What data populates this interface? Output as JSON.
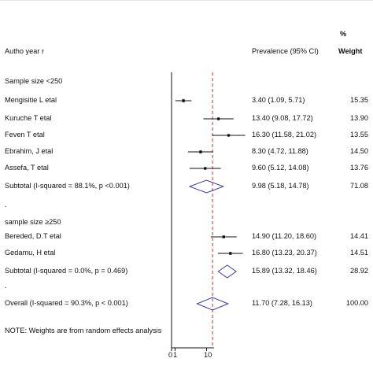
{
  "chart_data": {
    "type": "forest",
    "headers": {
      "study": "Autho year r",
      "estimate": "Prevalence (95% CI)",
      "weight_pct": "%",
      "weight": "Weight"
    },
    "axis": {
      "ticks": [
        "0",
        "1",
        "10"
      ],
      "reference_line": 11.7,
      "null_line": 0
    },
    "rows": [
      {
        "kind": "group",
        "label": "Sample size <250"
      },
      {
        "kind": "study",
        "label": "Mengisitie L etal",
        "est": 3.4,
        "lo": 1.09,
        "hi": 5.71,
        "ci": "3.40 (1.09, 5.71)",
        "weight": "15.35"
      },
      {
        "kind": "study",
        "label": "Kuruche T etal",
        "est": 13.4,
        "lo": 9.08,
        "hi": 17.72,
        "ci": "13.40 (9.08, 17.72)",
        "weight": "13.90"
      },
      {
        "kind": "study",
        "label": "Feven T  etal",
        "est": 16.3,
        "lo": 11.58,
        "hi": 21.02,
        "ci": "16.30 (11.58, 21.02)",
        "weight": "13.55"
      },
      {
        "kind": "study",
        "label": "Ebrahim, J etal",
        "est": 8.3,
        "lo": 4.72,
        "hi": 11.88,
        "ci": "8.30 (4.72, 11.88)",
        "weight": "14.50"
      },
      {
        "kind": "study",
        "label": "Assefa, T etal",
        "est": 9.6,
        "lo": 5.12,
        "hi": 14.08,
        "ci": "9.60 (5.12, 14.08)",
        "weight": "13.76"
      },
      {
        "kind": "subtotal",
        "label": "Subtotal  (I-squared = 88.1%, p <0.001)",
        "est": 9.98,
        "lo": 5.18,
        "hi": 14.78,
        "ci": "9.98 (5.18, 14.78)",
        "weight": "71.08"
      },
      {
        "kind": "blank",
        "label": "."
      },
      {
        "kind": "group",
        "label": "sample size ≥250"
      },
      {
        "kind": "study",
        "label": "Bereded, D.T etal",
        "est": 14.9,
        "lo": 11.2,
        "hi": 18.6,
        "ci": "14.90 (11.20, 18.60)",
        "weight": "14.41"
      },
      {
        "kind": "study",
        "label": "Gedamu, H etal",
        "est": 16.8,
        "lo": 13.23,
        "hi": 20.37,
        "ci": "16.80 (13.23, 20.37)",
        "weight": "14.51"
      },
      {
        "kind": "subtotal",
        "label": "Subtotal  (I-squared = 0.0%, p = 0.469)",
        "est": 15.89,
        "lo": 13.32,
        "hi": 18.46,
        "ci": "15.89 (13.32, 18.46)",
        "weight": "28.92"
      },
      {
        "kind": "blank",
        "label": "."
      },
      {
        "kind": "overall",
        "label": "Overall  (I-squared = 90.3%, p < 0.001)",
        "est": 11.7,
        "lo": 7.28,
        "hi": 16.13,
        "ci": "11.70 (7.28, 16.13)",
        "weight": "100.00"
      },
      {
        "kind": "blank",
        "label": ""
      },
      {
        "kind": "note",
        "label": "NOTE: Weights are from random effects analysis"
      }
    ],
    "colors": {
      "diamond": "#3a3aa0",
      "reference": "#c0392b",
      "ink": "#111111"
    }
  }
}
